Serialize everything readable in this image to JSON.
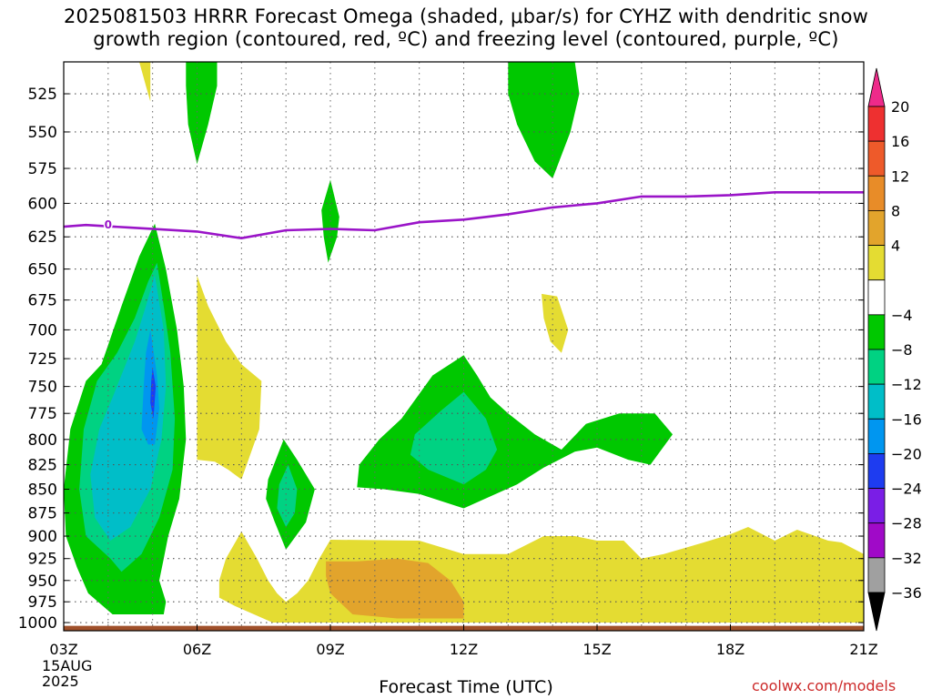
{
  "title": {
    "line1": "2025081503 HRRR Forecast Omega (shaded, μbar/s) for CYHZ with dendritic snow",
    "line2": "growth region (contoured, red, ºC) and freezing level (contoured, purple, ºC)"
  },
  "credit": "coolwx.com/models",
  "chart_data": {
    "type": "heatmap",
    "xlabel": "Forecast Time (UTC)",
    "x_ticks": [
      {
        "value": 3,
        "label": "03Z",
        "sub": [
          "15AUG",
          "2025"
        ]
      },
      {
        "value": 6,
        "label": "06Z"
      },
      {
        "value": 9,
        "label": "09Z"
      },
      {
        "value": 12,
        "label": "12Z"
      },
      {
        "value": 15,
        "label": "15Z"
      },
      {
        "value": 18,
        "label": "18Z"
      },
      {
        "value": 21,
        "label": "21Z"
      }
    ],
    "xlim": [
      3,
      21
    ],
    "y_ticks": [
      525,
      550,
      575,
      600,
      625,
      650,
      675,
      700,
      725,
      750,
      775,
      800,
      825,
      850,
      875,
      900,
      925,
      950,
      975,
      1000
    ],
    "ylim": [
      505,
      1010
    ],
    "y_scale": "log-pressure",
    "grid": true,
    "colorbar": {
      "tick_labels": [
        "20",
        "16",
        "12",
        "8",
        "4",
        "−4",
        "−8",
        "−12",
        "−16",
        "−20",
        "−24",
        "−28",
        "−32",
        "−36"
      ],
      "bands": [
        {
          "from": 20,
          "to": 24,
          "color": "#ee2a8a"
        },
        {
          "from": 16,
          "to": 20,
          "color": "#ee3030"
        },
        {
          "from": 12,
          "to": 16,
          "color": "#ee5a2a"
        },
        {
          "from": 8,
          "to": 12,
          "color": "#e88c28"
        },
        {
          "from": 4,
          "to": 8,
          "color": "#e2a42c"
        },
        {
          "from": 0,
          "to": 4,
          "color": "#e4dc32"
        },
        {
          "from": -4,
          "to": 0,
          "color": "#ffffff"
        },
        {
          "from": -8,
          "to": -4,
          "color": "#00c800"
        },
        {
          "from": -12,
          "to": -8,
          "color": "#00d282"
        },
        {
          "from": -16,
          "to": -12,
          "color": "#00bec8"
        },
        {
          "from": -20,
          "to": -16,
          "color": "#0096f0"
        },
        {
          "from": -24,
          "to": -20,
          "color": "#1e3cf0"
        },
        {
          "from": -28,
          "to": -24,
          "color": "#7a1ee6"
        },
        {
          "from": -32,
          "to": -28,
          "color": "#a00ac8"
        },
        {
          "from": -36,
          "to": -32,
          "color": "#a0a0a0"
        },
        {
          "from": -40,
          "to": -36,
          "color": "#000000"
        }
      ]
    },
    "freezing_level": {
      "label": "0",
      "color": "#9a14c8",
      "points": [
        [
          2.7,
          618
        ],
        [
          3.5,
          616
        ],
        [
          4.5,
          618
        ],
        [
          6,
          621
        ],
        [
          7,
          626
        ],
        [
          8,
          620
        ],
        [
          9,
          619
        ],
        [
          10,
          620
        ],
        [
          11,
          614
        ],
        [
          12,
          612
        ],
        [
          13,
          608
        ],
        [
          14,
          603
        ],
        [
          15,
          600
        ],
        [
          16,
          595
        ],
        [
          17,
          595
        ],
        [
          18,
          594
        ],
        [
          19,
          592
        ],
        [
          20,
          592
        ],
        [
          21,
          592
        ]
      ]
    },
    "ground": {
      "color": "#a0502a",
      "p_top": 1004
    },
    "regions": [
      {
        "level": "yellow",
        "color": "#e4dc32",
        "points": [
          [
            4.7,
            505
          ],
          [
            4.95,
            505
          ],
          [
            4.95,
            520
          ],
          [
            4.95,
            530
          ],
          [
            4.85,
            520
          ]
        ]
      },
      {
        "level": "green",
        "color": "#00c800",
        "points": [
          [
            5.75,
            505
          ],
          [
            6.45,
            505
          ],
          [
            6.45,
            520
          ],
          [
            6.25,
            545
          ],
          [
            6.0,
            572
          ],
          [
            5.8,
            545
          ],
          [
            5.75,
            520
          ]
        ]
      },
      {
        "level": "green",
        "color": "#00c800",
        "points": [
          [
            13.0,
            505
          ],
          [
            14.5,
            505
          ],
          [
            14.6,
            525
          ],
          [
            14.4,
            550
          ],
          [
            14.0,
            582
          ],
          [
            13.6,
            570
          ],
          [
            13.2,
            545
          ],
          [
            13.0,
            525
          ]
        ]
      },
      {
        "level": "green",
        "color": "#00c800",
        "points": [
          [
            9.0,
            583
          ],
          [
            9.2,
            610
          ],
          [
            9.15,
            625
          ],
          [
            8.95,
            645
          ],
          [
            8.85,
            625
          ],
          [
            8.8,
            605
          ]
        ]
      },
      {
        "level": "yellow",
        "color": "#e4dc32",
        "points": [
          [
            13.75,
            670
          ],
          [
            14.1,
            672
          ],
          [
            14.35,
            700
          ],
          [
            14.2,
            720
          ],
          [
            13.95,
            710
          ],
          [
            13.8,
            690
          ]
        ]
      },
      {
        "level": "yellow",
        "color": "#e4dc32",
        "points": [
          [
            6.0,
            655
          ],
          [
            6.25,
            680
          ],
          [
            6.65,
            710
          ],
          [
            7.0,
            730
          ],
          [
            7.45,
            745
          ],
          [
            7.4,
            790
          ],
          [
            7.0,
            840
          ],
          [
            6.7,
            830
          ],
          [
            6.4,
            822
          ],
          [
            6.0,
            820
          ],
          [
            6.0,
            720
          ]
        ]
      },
      {
        "level": "green",
        "color": "#00c800",
        "points": [
          [
            5.05,
            615
          ],
          [
            5.3,
            650
          ],
          [
            5.55,
            700
          ],
          [
            5.7,
            750
          ],
          [
            5.75,
            800
          ],
          [
            5.6,
            860
          ],
          [
            5.35,
            900
          ],
          [
            5.25,
            925
          ],
          [
            5.15,
            950
          ],
          [
            5.3,
            975
          ],
          [
            5.25,
            990
          ],
          [
            4.1,
            990
          ],
          [
            3.55,
            965
          ],
          [
            3.3,
            935
          ],
          [
            3.05,
            900
          ],
          [
            3.0,
            850
          ],
          [
            3.15,
            790
          ],
          [
            3.5,
            745
          ],
          [
            3.85,
            730
          ],
          [
            4.3,
            680
          ],
          [
            4.7,
            640
          ]
        ]
      },
      {
        "level": "teal",
        "color": "#00d282",
        "points": [
          [
            5.1,
            645
          ],
          [
            5.25,
            680
          ],
          [
            5.4,
            720
          ],
          [
            5.5,
            780
          ],
          [
            5.45,
            830
          ],
          [
            5.15,
            880
          ],
          [
            4.75,
            920
          ],
          [
            4.3,
            940
          ],
          [
            4.05,
            925
          ],
          [
            3.5,
            900
          ],
          [
            3.35,
            850
          ],
          [
            3.45,
            790
          ],
          [
            3.75,
            745
          ],
          [
            4.2,
            720
          ],
          [
            4.6,
            690
          ],
          [
            4.9,
            660
          ]
        ]
      },
      {
        "level": "cyan",
        "color": "#00bec8",
        "points": [
          [
            5.05,
            655
          ],
          [
            5.25,
            700
          ],
          [
            5.3,
            750
          ],
          [
            5.2,
            800
          ],
          [
            4.95,
            850
          ],
          [
            4.5,
            890
          ],
          [
            4.05,
            905
          ],
          [
            3.7,
            880
          ],
          [
            3.6,
            835
          ],
          [
            3.8,
            790
          ],
          [
            4.1,
            760
          ],
          [
            4.6,
            710
          ],
          [
            4.85,
            680
          ]
        ]
      },
      {
        "level": "sky",
        "color": "#0096f0",
        "points": [
          [
            4.95,
            700
          ],
          [
            5.1,
            740
          ],
          [
            5.15,
            770
          ],
          [
            5.05,
            805
          ],
          [
            4.9,
            805
          ],
          [
            4.75,
            790
          ],
          [
            4.8,
            750
          ],
          [
            4.85,
            720
          ]
        ]
      },
      {
        "level": "blue",
        "color": "#1e3cf0",
        "points": [
          [
            5.0,
            733
          ],
          [
            5.07,
            750
          ],
          [
            5.02,
            780
          ],
          [
            4.95,
            765
          ],
          [
            4.97,
            745
          ]
        ]
      },
      {
        "level": "green",
        "color": "#00c800",
        "points": [
          [
            7.95,
            800
          ],
          [
            8.25,
            820
          ],
          [
            8.65,
            850
          ],
          [
            8.45,
            885
          ],
          [
            8.0,
            915
          ],
          [
            7.75,
            885
          ],
          [
            7.55,
            860
          ],
          [
            7.6,
            840
          ]
        ]
      },
      {
        "level": "teal",
        "color": "#00d282",
        "points": [
          [
            8.05,
            825
          ],
          [
            8.25,
            850
          ],
          [
            8.2,
            875
          ],
          [
            8.0,
            890
          ],
          [
            7.8,
            870
          ],
          [
            7.85,
            845
          ]
        ]
      },
      {
        "level": "green",
        "color": "#00c800",
        "points": [
          [
            12.0,
            722
          ],
          [
            12.3,
            740
          ],
          [
            12.6,
            760
          ],
          [
            13.0,
            775
          ],
          [
            13.6,
            795
          ],
          [
            14.2,
            810
          ],
          [
            14.75,
            785
          ],
          [
            15.5,
            775
          ],
          [
            16.3,
            775
          ],
          [
            16.7,
            795
          ],
          [
            16.2,
            825
          ],
          [
            15.7,
            820
          ],
          [
            15.0,
            808
          ],
          [
            14.5,
            812
          ],
          [
            13.8,
            828
          ],
          [
            13.2,
            845
          ],
          [
            12.0,
            870
          ],
          [
            11.0,
            855
          ],
          [
            10.2,
            850
          ],
          [
            9.6,
            848
          ],
          [
            9.65,
            825
          ],
          [
            10.1,
            800
          ],
          [
            10.6,
            780
          ],
          [
            11.3,
            740
          ]
        ]
      },
      {
        "level": "teal",
        "color": "#00d282",
        "points": [
          [
            12.0,
            755
          ],
          [
            12.5,
            780
          ],
          [
            12.75,
            810
          ],
          [
            12.5,
            830
          ],
          [
            12.0,
            845
          ],
          [
            11.2,
            830
          ],
          [
            10.8,
            815
          ],
          [
            10.9,
            795
          ],
          [
            11.5,
            772
          ]
        ]
      },
      {
        "level": "yellow",
        "color": "#e4dc32",
        "points": [
          [
            21.0,
            920
          ],
          [
            20.5,
            907
          ],
          [
            20.2,
            905
          ],
          [
            19.5,
            893
          ],
          [
            19.0,
            905
          ],
          [
            18.4,
            890
          ],
          [
            18.0,
            898
          ],
          [
            17.4,
            907
          ],
          [
            16.5,
            920
          ],
          [
            16.0,
            925
          ],
          [
            15.6,
            905
          ],
          [
            15.0,
            905
          ],
          [
            14.5,
            900
          ],
          [
            13.8,
            900
          ],
          [
            13.0,
            920
          ],
          [
            12.0,
            920
          ],
          [
            11.0,
            905
          ],
          [
            9.0,
            904
          ],
          [
            8.75,
            925
          ],
          [
            8.5,
            950
          ],
          [
            8.25,
            965
          ],
          [
            8.0,
            975
          ],
          [
            7.8,
            965
          ],
          [
            7.6,
            950
          ],
          [
            7.35,
            925
          ],
          [
            7.0,
            895
          ],
          [
            6.65,
            925
          ],
          [
            6.5,
            950
          ],
          [
            6.5,
            970
          ],
          [
            6.85,
            980
          ],
          [
            7.7,
            1000
          ],
          [
            21.0,
            1000
          ]
        ]
      },
      {
        "level": "orange",
        "color": "#e2a42c",
        "points": [
          [
            8.9,
            928
          ],
          [
            9.6,
            928
          ],
          [
            10.5,
            925
          ],
          [
            11.2,
            930
          ],
          [
            11.7,
            950
          ],
          [
            12.0,
            975
          ],
          [
            12.0,
            995
          ],
          [
            10.5,
            995
          ],
          [
            9.5,
            990
          ],
          [
            9.0,
            965
          ],
          [
            8.9,
            945
          ]
        ]
      }
    ]
  }
}
